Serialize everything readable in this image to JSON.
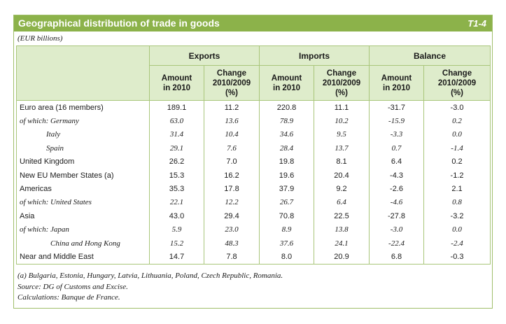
{
  "title": "Geographical distribution of trade in goods",
  "table_id": "T1-4",
  "unit": "(EUR billions)",
  "groups": [
    "Exports",
    "Imports",
    "Balance"
  ],
  "sub_amount": [
    "Amount",
    "in 2010"
  ],
  "sub_change": [
    "Change",
    "2010/2009",
    "(%)"
  ],
  "rows": [
    {
      "label": "Euro area (16 members)",
      "italic": false,
      "indent": 0,
      "values": [
        "189.1",
        "11.2",
        "220.8",
        "11.1",
        "-31.7",
        "-3.0"
      ]
    },
    {
      "label": "of which: Germany",
      "italic": true,
      "indent": 1,
      "values": [
        "63.0",
        "13.6",
        "78.9",
        "10.2",
        "-15.9",
        "0.2"
      ]
    },
    {
      "label": "Italy",
      "italic": true,
      "indent": 2,
      "values": [
        "31.4",
        "10.4",
        "34.6",
        "9.5",
        "-3.3",
        "0.0"
      ]
    },
    {
      "label": "Spain",
      "italic": true,
      "indent": 2,
      "values": [
        "29.1",
        "7.6",
        "28.4",
        "13.7",
        "0.7",
        "-1.4"
      ]
    },
    {
      "label": "United Kingdom",
      "italic": false,
      "indent": 0,
      "values": [
        "26.2",
        "7.0",
        "19.8",
        "8.1",
        "6.4",
        "0.2"
      ]
    },
    {
      "label": "New EU Member States (a)",
      "italic": false,
      "indent": 0,
      "values": [
        "15.3",
        "16.2",
        "19.6",
        "20.4",
        "-4.3",
        "-1.2"
      ]
    },
    {
      "label": "Americas",
      "italic": false,
      "indent": 0,
      "values": [
        "35.3",
        "17.8",
        "37.9",
        "9.2",
        "-2.6",
        "2.1"
      ]
    },
    {
      "label": "of which: United States",
      "italic": true,
      "indent": 1,
      "values": [
        "22.1",
        "12.2",
        "26.7",
        "6.4",
        "-4.6",
        "0.8"
      ]
    },
    {
      "label": "Asia",
      "italic": false,
      "indent": 0,
      "values": [
        "43.0",
        "29.4",
        "70.8",
        "22.5",
        "-27.8",
        "-3.2"
      ]
    },
    {
      "label": "of which: Japan",
      "italic": true,
      "indent": 1,
      "values": [
        "5.9",
        "23.0",
        "8.9",
        "13.8",
        "-3.0",
        "0.0"
      ]
    },
    {
      "label": "China and Hong Kong",
      "italic": true,
      "indent": 3,
      "values": [
        "15.2",
        "48.3",
        "37.6",
        "24.1",
        "-22.4",
        "-2.4"
      ]
    },
    {
      "label": "Near and Middle East",
      "italic": false,
      "indent": 0,
      "values": [
        "14.7",
        "7.8",
        "8.0",
        "20.9",
        "6.8",
        "-0.3"
      ]
    }
  ],
  "notes": [
    "(a) Bulgaria, Estonia, Hungary, Latvia, Lithuania, Poland, Czech Republic, Romania.",
    "Source: DG of Customs and Excise.",
    "Calculations: Banque de France."
  ]
}
